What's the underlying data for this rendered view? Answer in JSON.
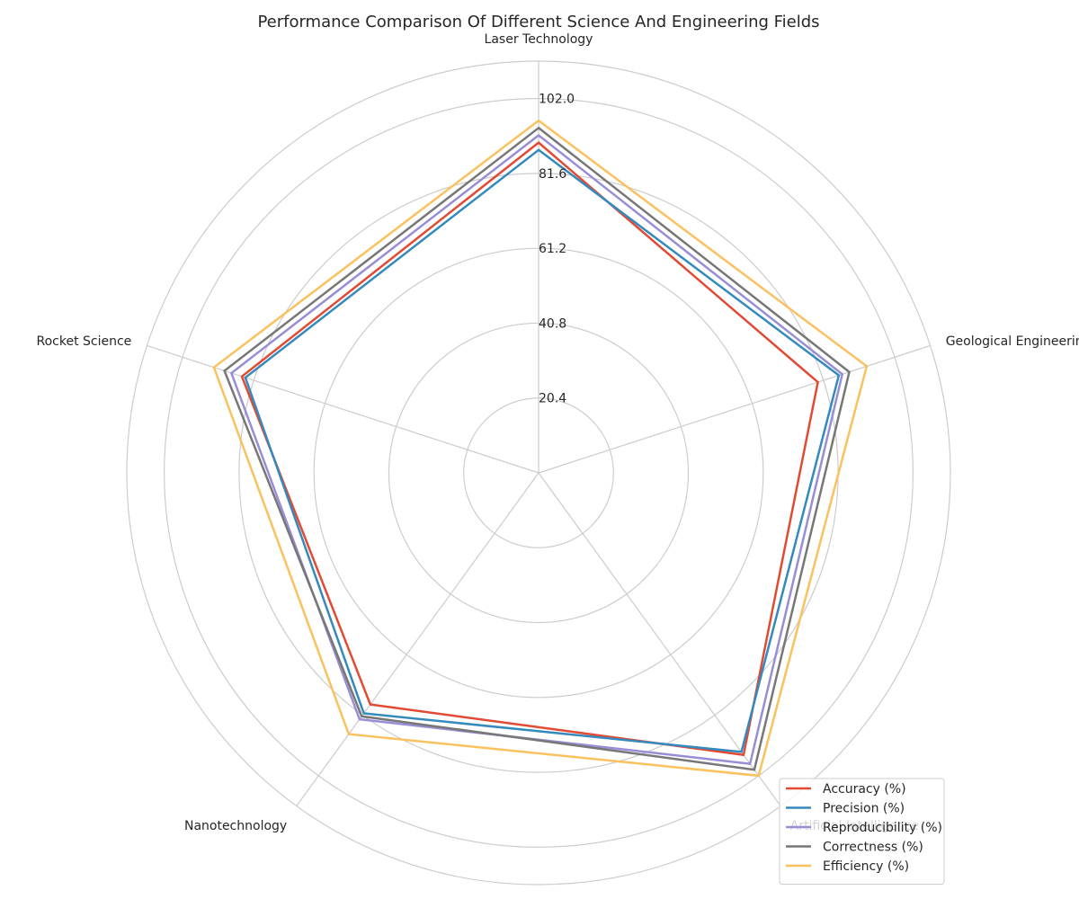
{
  "chart_data": {
    "type": "radar",
    "title": "Performance Comparison Of Different Science And Engineering Fields",
    "categories": [
      "Laser Technology",
      "Geological Engineering",
      "Artificial Intelligence",
      "Nanotechnology",
      "Rocket Science"
    ],
    "rlim": [
      0,
      112.2
    ],
    "radial_ticks": [
      20.4,
      40.8,
      61.2,
      81.6,
      102.0
    ],
    "radial_tick_labels": [
      "20.4",
      "40.8",
      "61.2",
      "81.6",
      "102.0"
    ],
    "grid": true,
    "legend_position": "lower-right",
    "series": [
      {
        "name": "Accuracy (%)",
        "color": "#E24A33",
        "values": [
          90,
          80,
          95,
          78,
          85
        ]
      },
      {
        "name": "Precision (%)",
        "color": "#348ABD",
        "values": [
          88,
          86,
          94,
          81,
          84
        ]
      },
      {
        "name": "Reproducibility (%)",
        "color": "#988ED5",
        "values": [
          92,
          87,
          98,
          83,
          88
        ]
      },
      {
        "name": "Correctness (%)",
        "color": "#777777",
        "values": [
          94,
          89,
          100,
          82,
          90
        ]
      },
      {
        "name": "Efficiency (%)",
        "color": "#FBC15E",
        "values": [
          96,
          94,
          102,
          88,
          93
        ]
      }
    ]
  }
}
